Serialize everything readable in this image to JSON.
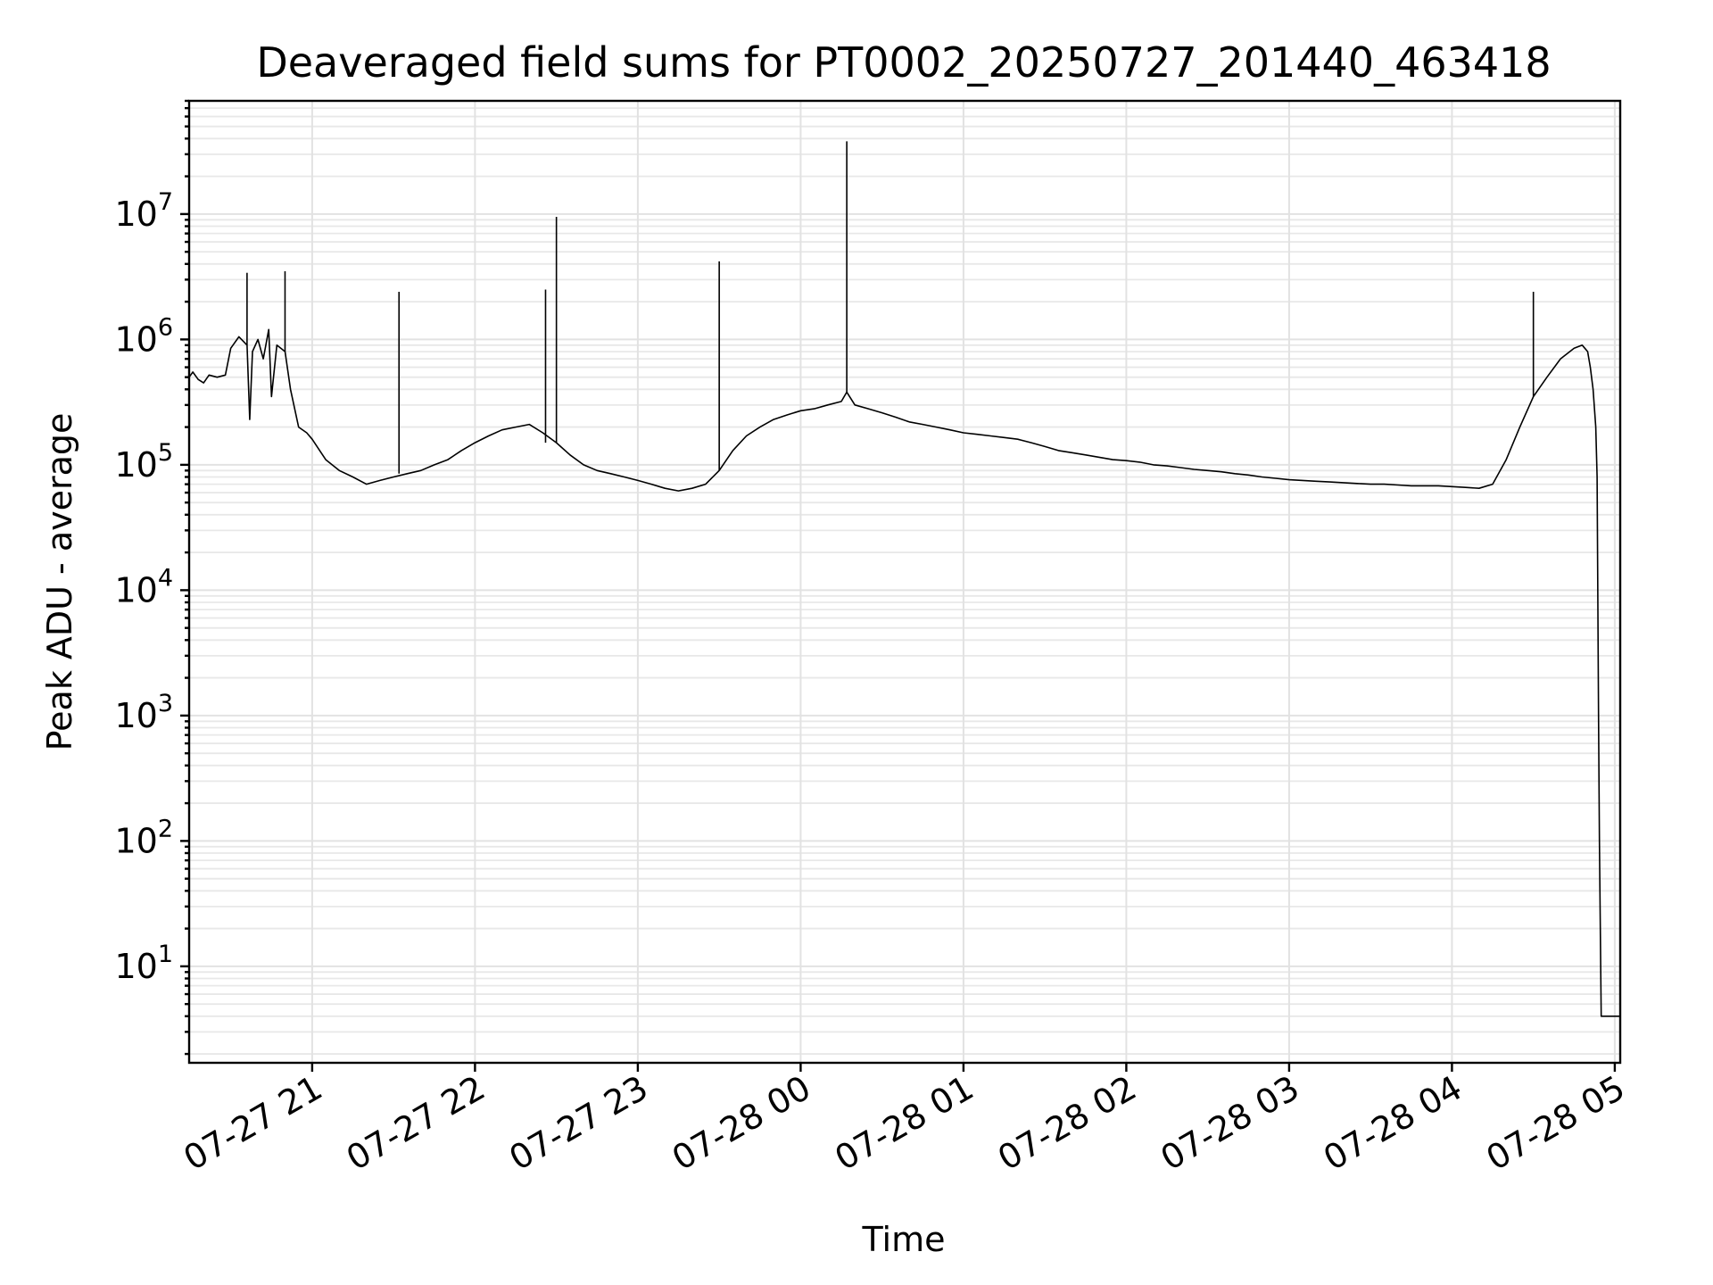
{
  "chart_data": {
    "type": "line",
    "title": "Deaveraged field sums for PT0002_20250727_201440_463418",
    "xlabel": "Time",
    "ylabel": "Peak ADU - average",
    "y_scale": "log",
    "ylim": [
      1.7,
      80000000
    ],
    "xlim": [
      "2025-07-27 20:14:40",
      "2025-07-28 05:02:00"
    ],
    "grid": true,
    "x_ticks": [
      {
        "value": "2025-07-27 21:00",
        "label": "07-27 21"
      },
      {
        "value": "2025-07-27 22:00",
        "label": "07-27 22"
      },
      {
        "value": "2025-07-27 23:00",
        "label": "07-27 23"
      },
      {
        "value": "2025-07-28 00:00",
        "label": "07-28 00"
      },
      {
        "value": "2025-07-28 01:00",
        "label": "07-28 01"
      },
      {
        "value": "2025-07-28 02:00",
        "label": "07-28 02"
      },
      {
        "value": "2025-07-28 03:00",
        "label": "07-28 03"
      },
      {
        "value": "2025-07-28 04:00",
        "label": "07-28 04"
      },
      {
        "value": "2025-07-28 05:00",
        "label": "07-28 05"
      }
    ],
    "y_ticks": [
      {
        "value": 10,
        "base": "10",
        "exp": "1"
      },
      {
        "value": 100,
        "base": "10",
        "exp": "2"
      },
      {
        "value": 1000,
        "base": "10",
        "exp": "3"
      },
      {
        "value": 10000,
        "base": "10",
        "exp": "4"
      },
      {
        "value": 100000,
        "base": "10",
        "exp": "5"
      },
      {
        "value": 1000000,
        "base": "10",
        "exp": "6"
      },
      {
        "value": 10000000,
        "base": "10",
        "exp": "7"
      }
    ],
    "series": [
      {
        "color": "#000000",
        "x": [
          "2025-07-27 20:14:40",
          "2025-07-27 20:16:00",
          "2025-07-27 20:18:00",
          "2025-07-27 20:20:00",
          "2025-07-27 20:22:00",
          "2025-07-27 20:25:00",
          "2025-07-27 20:28:00",
          "2025-07-27 20:30:00",
          "2025-07-27 20:33:00",
          "2025-07-27 20:36:00",
          "2025-07-27 20:37:00",
          "2025-07-27 20:38:00",
          "2025-07-27 20:40:00",
          "2025-07-27 20:42:00",
          "2025-07-27 20:44:00",
          "2025-07-27 20:45:00",
          "2025-07-27 20:47:00",
          "2025-07-27 20:50:00",
          "2025-07-27 20:52:00",
          "2025-07-27 20:55:00",
          "2025-07-27 20:58:00",
          "2025-07-27 21:00:00",
          "2025-07-27 21:05:00",
          "2025-07-27 21:10:00",
          "2025-07-27 21:15:00",
          "2025-07-27 21:20:00",
          "2025-07-27 21:25:00",
          "2025-07-27 21:30:00",
          "2025-07-27 21:35:00",
          "2025-07-27 21:40:00",
          "2025-07-27 21:45:00",
          "2025-07-27 21:50:00",
          "2025-07-27 21:55:00",
          "2025-07-27 22:00:00",
          "2025-07-27 22:05:00",
          "2025-07-27 22:10:00",
          "2025-07-27 22:15:00",
          "2025-07-27 22:20:00",
          "2025-07-27 22:25:00",
          "2025-07-27 22:30:00",
          "2025-07-27 22:35:00",
          "2025-07-27 22:40:00",
          "2025-07-27 22:45:00",
          "2025-07-27 22:50:00",
          "2025-07-27 22:55:00",
          "2025-07-27 23:00:00",
          "2025-07-27 23:05:00",
          "2025-07-27 23:10:00",
          "2025-07-27 23:15:00",
          "2025-07-27 23:20:00",
          "2025-07-27 23:25:00",
          "2025-07-27 23:30:00",
          "2025-07-27 23:35:00",
          "2025-07-27 23:40:00",
          "2025-07-27 23:45:00",
          "2025-07-27 23:50:00",
          "2025-07-27 23:55:00",
          "2025-07-28 00:00:00",
          "2025-07-28 00:05:00",
          "2025-07-28 00:10:00",
          "2025-07-28 00:15:00",
          "2025-07-28 00:17:00",
          "2025-07-28 00:20:00",
          "2025-07-28 00:25:00",
          "2025-07-28 00:30:00",
          "2025-07-28 00:35:00",
          "2025-07-28 00:40:00",
          "2025-07-28 00:45:00",
          "2025-07-28 00:50:00",
          "2025-07-28 00:55:00",
          "2025-07-28 01:00:00",
          "2025-07-28 01:05:00",
          "2025-07-28 01:10:00",
          "2025-07-28 01:15:00",
          "2025-07-28 01:20:00",
          "2025-07-28 01:25:00",
          "2025-07-28 01:30:00",
          "2025-07-28 01:35:00",
          "2025-07-28 01:40:00",
          "2025-07-28 01:45:00",
          "2025-07-28 01:50:00",
          "2025-07-28 01:55:00",
          "2025-07-28 02:00:00",
          "2025-07-28 02:05:00",
          "2025-07-28 02:10:00",
          "2025-07-28 02:15:00",
          "2025-07-28 02:20:00",
          "2025-07-28 02:25:00",
          "2025-07-28 02:30:00",
          "2025-07-28 02:35:00",
          "2025-07-28 02:40:00",
          "2025-07-28 02:45:00",
          "2025-07-28 02:50:00",
          "2025-07-28 02:55:00",
          "2025-07-28 03:00:00",
          "2025-07-28 03:05:00",
          "2025-07-28 03:10:00",
          "2025-07-28 03:15:00",
          "2025-07-28 03:20:00",
          "2025-07-28 03:25:00",
          "2025-07-28 03:30:00",
          "2025-07-28 03:35:00",
          "2025-07-28 03:40:00",
          "2025-07-28 03:45:00",
          "2025-07-28 03:50:00",
          "2025-07-28 03:55:00",
          "2025-07-28 04:00:00",
          "2025-07-28 04:05:00",
          "2025-07-28 04:10:00",
          "2025-07-28 04:15:00",
          "2025-07-28 04:20:00",
          "2025-07-28 04:25:00",
          "2025-07-28 04:30:00",
          "2025-07-28 04:35:00",
          "2025-07-28 04:40:00",
          "2025-07-28 04:45:00",
          "2025-07-28 04:48:00",
          "2025-07-28 04:50:00",
          "2025-07-28 04:51:00",
          "2025-07-28 04:52:00",
          "2025-07-28 04:53:00",
          "2025-07-28 04:53:30",
          "2025-07-28 04:54:00",
          "2025-07-28 04:54:20",
          "2025-07-28 04:54:40",
          "2025-07-28 04:55:00",
          "2025-07-28 04:56:00",
          "2025-07-28 04:58:00",
          "2025-07-28 05:00:00",
          "2025-07-28 05:02:00"
        ],
        "y": [
          500000,
          550000,
          480000,
          450000,
          520000,
          500000,
          520000,
          850000,
          1050000,
          900000,
          230000,
          800000,
          1000000,
          700000,
          1200000,
          350000,
          900000,
          800000,
          400000,
          200000,
          180000,
          160000,
          110000,
          90000,
          80000,
          70000,
          75000,
          80000,
          85000,
          90000,
          100000,
          110000,
          130000,
          150000,
          170000,
          190000,
          200000,
          210000,
          180000,
          150000,
          120000,
          100000,
          90000,
          85000,
          80000,
          75000,
          70000,
          65000,
          62000,
          65000,
          70000,
          90000,
          130000,
          170000,
          200000,
          230000,
          250000,
          270000,
          280000,
          300000,
          320000,
          380000,
          300000,
          280000,
          260000,
          240000,
          220000,
          210000,
          200000,
          190000,
          180000,
          175000,
          170000,
          165000,
          160000,
          150000,
          140000,
          130000,
          125000,
          120000,
          115000,
          110000,
          108000,
          105000,
          100000,
          98000,
          95000,
          92000,
          90000,
          88000,
          85000,
          83000,
          80000,
          78000,
          76000,
          75000,
          74000,
          73000,
          72000,
          71000,
          70000,
          70000,
          69000,
          68000,
          68000,
          68000,
          67000,
          66000,
          65000,
          70000,
          110000,
          200000,
          350000,
          500000,
          700000,
          850000,
          900000,
          800000,
          600000,
          400000,
          200000,
          80000,
          1000,
          100,
          20,
          4,
          4,
          4,
          4,
          4
        ]
      }
    ],
    "spikes": [
      {
        "x": "2025-07-27 20:36:00",
        "y": 3400000
      },
      {
        "x": "2025-07-27 20:50:00",
        "y": 3500000
      },
      {
        "x": "2025-07-27 21:32:00",
        "y": 2400000
      },
      {
        "x": "2025-07-27 22:26:00",
        "y": 2500000
      },
      {
        "x": "2025-07-27 22:30:00",
        "y": 9500000
      },
      {
        "x": "2025-07-27 23:30:00",
        "y": 4200000
      },
      {
        "x": "2025-07-28 00:17:00",
        "y": 38000000
      },
      {
        "x": "2025-07-28 04:30:00",
        "y": 2400000
      }
    ]
  }
}
